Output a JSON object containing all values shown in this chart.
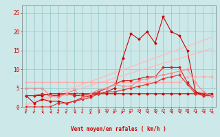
{
  "bg_color": "#cce8e8",
  "grid_color": "#99cccc",
  "xlabel": "Vent moyen/en rafales ( km/h )",
  "xlabel_color": "#cc0000",
  "tick_color": "#cc0000",
  "ylim": [
    0,
    27
  ],
  "xlim": [
    -0.5,
    23.5
  ],
  "yticks": [
    0,
    5,
    10,
    15,
    20,
    25
  ],
  "xticks": [
    0,
    1,
    2,
    3,
    4,
    5,
    6,
    7,
    8,
    9,
    10,
    11,
    12,
    13,
    14,
    15,
    16,
    17,
    18,
    19,
    20,
    21,
    22,
    23
  ],
  "trend1_x": [
    0,
    20
  ],
  "trend1_y": [
    6.5,
    8.5
  ],
  "trend2_x": [
    0,
    23
  ],
  "trend2_y": [
    0.5,
    18.5
  ],
  "trend3_x": [
    0,
    23
  ],
  "trend3_y": [
    0.5,
    15.5
  ],
  "line_flat_pink_y": 6.5,
  "lines": [
    {
      "x": [
        0,
        1,
        2,
        3,
        4,
        5,
        6,
        7,
        8,
        9,
        10,
        11,
        12,
        13,
        14,
        15,
        16,
        17,
        18,
        19,
        20,
        21,
        22,
        23
      ],
      "y": [
        3.0,
        3.0,
        3.0,
        3.5,
        3.5,
        3.5,
        3.5,
        3.5,
        3.5,
        3.5,
        3.5,
        3.5,
        3.5,
        3.5,
        3.5,
        3.5,
        3.5,
        3.5,
        3.5,
        3.5,
        3.5,
        3.5,
        3.5,
        3.5
      ],
      "color": "#cc0000",
      "marker": true,
      "lw": 0.8
    },
    {
      "x": [
        0,
        1,
        2,
        3,
        4,
        5,
        6,
        7,
        8,
        9,
        10,
        11,
        12,
        13,
        14,
        15,
        16,
        17,
        18,
        19,
        20,
        21,
        22,
        23
      ],
      "y": [
        3.0,
        1.0,
        2.0,
        1.5,
        1.5,
        1.0,
        1.5,
        2.5,
        3.0,
        3.5,
        4.0,
        5.0,
        13.0,
        19.5,
        18.0,
        20.0,
        17.0,
        24.0,
        20.0,
        19.0,
        15.0,
        4.0,
        3.0,
        3.0
      ],
      "color": "#cc0000",
      "marker": true,
      "lw": 0.8
    },
    {
      "x": [
        0,
        1,
        2,
        3,
        4,
        5,
        6,
        7,
        8,
        9,
        10,
        11,
        12,
        13,
        14,
        15,
        16,
        17,
        18,
        19,
        20,
        21,
        22,
        23
      ],
      "y": [
        3.0,
        3.0,
        3.5,
        3.0,
        3.0,
        3.5,
        3.0,
        3.0,
        3.5,
        4.0,
        5.0,
        6.0,
        7.0,
        7.0,
        7.5,
        8.0,
        8.0,
        10.5,
        10.5,
        10.5,
        6.5,
        4.0,
        3.5,
        3.0
      ],
      "color": "#cc2222",
      "marker": true,
      "lw": 0.8
    },
    {
      "x": [
        0,
        1,
        2,
        3,
        4,
        5,
        6,
        7,
        8,
        9,
        10,
        11,
        12,
        13,
        14,
        15,
        16,
        17,
        18,
        19,
        20,
        21,
        22,
        23
      ],
      "y": [
        0,
        0,
        0,
        0,
        1.0,
        1.0,
        1.5,
        2.0,
        2.5,
        3.5,
        4.0,
        4.0,
        4.5,
        5.0,
        5.5,
        6.0,
        6.5,
        7.5,
        8.0,
        8.5,
        6.0,
        3.5,
        3.0,
        3.0
      ],
      "color": "#dd3333",
      "marker": true,
      "lw": 0.8
    },
    {
      "x": [
        0,
        1,
        2,
        3,
        4,
        5,
        6,
        7,
        8,
        9,
        10,
        11,
        12,
        13,
        14,
        15,
        16,
        17,
        18,
        19,
        20,
        21,
        22,
        23
      ],
      "y": [
        5.0,
        5.0,
        5.0,
        3.0,
        2.5,
        3.5,
        4.5,
        2.5,
        3.5,
        4.5,
        5.0,
        6.0,
        5.5,
        5.5,
        7.0,
        7.5,
        8.0,
        8.5,
        9.0,
        9.5,
        10.0,
        6.5,
        4.0,
        3.0
      ],
      "color": "#ff8888",
      "marker": true,
      "lw": 0.8
    }
  ],
  "flat_line": {
    "x": [
      0,
      1,
      2,
      3,
      4,
      5,
      6,
      7,
      8,
      9,
      10,
      11,
      12,
      13,
      14,
      15,
      16,
      17,
      18,
      19,
      20,
      21,
      22,
      23
    ],
    "y": [
      6.5,
      6.5,
      6.5,
      6.5,
      6.5,
      6.5,
      6.5,
      6.5,
      6.5,
      6.5,
      6.5,
      6.5,
      6.5,
      6.5,
      6.5,
      6.5,
      6.5,
      6.5,
      6.5,
      6.5,
      8.0,
      8.0,
      8.0,
      8.0
    ],
    "color": "#ffaaaa",
    "marker": true,
    "lw": 0.8
  },
  "wind_dirs": [
    225,
    225,
    270,
    270,
    315,
    225,
    270,
    225,
    180,
    135,
    135,
    90,
    90,
    90,
    270,
    270,
    270,
    270,
    270,
    270,
    270,
    270,
    270,
    270
  ]
}
